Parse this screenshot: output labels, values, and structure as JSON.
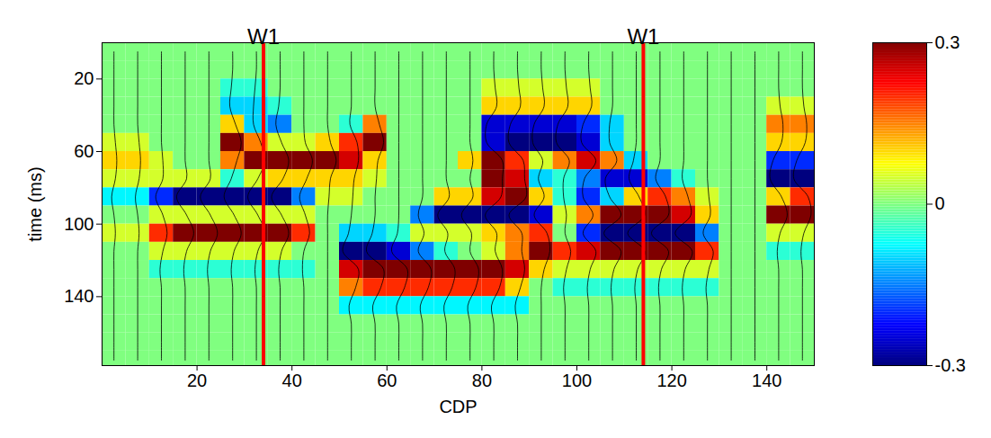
{
  "chart_data": {
    "type": "heatmap",
    "x_label": "CDP",
    "y_label": "time (ms)",
    "xlim": [
      0,
      150
    ],
    "xticks": [
      20,
      40,
      60,
      80,
      100,
      120,
      140
    ],
    "ylim": [
      0,
      178
    ],
    "yticks": [
      20,
      60,
      100,
      140
    ],
    "x_edges": [
      0,
      5,
      10,
      15,
      20,
      25,
      30,
      35,
      40,
      45,
      50,
      55,
      60,
      65,
      70,
      75,
      80,
      85,
      90,
      95,
      100,
      105,
      110,
      115,
      120,
      125,
      130,
      135,
      140,
      145,
      150
    ],
    "y_edges": [
      0,
      10,
      20,
      30,
      40,
      50,
      60,
      70,
      80,
      90,
      100,
      110,
      120,
      130,
      140,
      150,
      160,
      170,
      180
    ],
    "cells": [
      [
        0,
        0,
        0,
        0,
        0,
        0,
        0,
        0,
        0,
        0,
        0,
        0,
        0,
        0,
        0,
        0,
        0,
        0,
        0,
        0,
        0,
        0,
        0,
        0,
        0,
        0,
        0,
        0,
        0,
        0
      ],
      [
        0,
        0,
        0,
        0,
        0,
        0,
        0,
        0,
        0,
        0,
        0,
        0,
        0,
        0,
        0,
        0,
        0,
        0,
        0,
        0,
        0,
        0,
        0,
        0,
        0,
        0,
        0,
        0,
        0,
        0
      ],
      [
        0,
        0,
        0,
        0,
        0,
        -0.05,
        -0.05,
        0,
        0,
        0,
        0,
        0,
        0,
        0,
        0,
        0,
        0.05,
        0.05,
        0.05,
        0.05,
        0.05,
        0,
        0,
        0,
        0,
        0,
        0,
        0,
        0,
        0
      ],
      [
        0,
        0,
        0,
        0,
        0,
        -0.1,
        -0.1,
        -0.05,
        0,
        0,
        0,
        0,
        0,
        0,
        0,
        0,
        0.1,
        0.1,
        0.1,
        0.1,
        0.1,
        0,
        0,
        0,
        0,
        0,
        0,
        0,
        0.05,
        0.05
      ],
      [
        0,
        0,
        0,
        0,
        0,
        0.1,
        -0.1,
        -0.15,
        0,
        0,
        -0.05,
        0.15,
        0,
        0,
        0,
        0,
        -0.25,
        -0.25,
        -0.25,
        -0.25,
        -0.2,
        -0.1,
        0,
        0,
        0,
        0,
        0,
        0,
        0.15,
        0.15
      ],
      [
        0.05,
        0.05,
        0,
        0,
        0,
        0.3,
        0.15,
        0.05,
        0.05,
        0.1,
        0.2,
        0.3,
        0,
        0,
        0,
        0,
        -0.25,
        -0.3,
        -0.3,
        -0.3,
        -0.25,
        -0.1,
        0,
        0,
        0,
        0,
        0,
        0,
        0.1,
        0.1
      ],
      [
        0.1,
        0.1,
        0.05,
        0,
        0,
        0.15,
        0.3,
        0.3,
        0.3,
        0.3,
        0.25,
        0.1,
        0,
        0,
        0,
        0.1,
        0.3,
        0.2,
        0.05,
        0.15,
        0.25,
        0.15,
        -0.1,
        0,
        0,
        0,
        0,
        0,
        -0.2,
        -0.2
      ],
      [
        0.05,
        0.05,
        0.05,
        0.05,
        0.05,
        -0.05,
        0.05,
        0.1,
        0.1,
        0.1,
        0.1,
        0.05,
        0,
        0,
        0,
        0,
        0.3,
        0.25,
        -0.1,
        -0.05,
        -0.15,
        -0.25,
        -0.25,
        -0.15,
        -0.05,
        0,
        0,
        0,
        -0.3,
        -0.3
      ],
      [
        -0.08,
        -0.08,
        -0.2,
        -0.3,
        -0.3,
        -0.3,
        -0.3,
        -0.3,
        -0.15,
        0.05,
        0.05,
        0,
        0,
        0,
        0.1,
        0.1,
        0.25,
        0.3,
        0.1,
        -0.05,
        -0.2,
        -0.1,
        0.1,
        0.2,
        0.15,
        0.05,
        0,
        0,
        0.1,
        0.2
      ],
      [
        0,
        0,
        0.05,
        0.05,
        0.05,
        0.05,
        0.05,
        0.05,
        0.05,
        0,
        0,
        0,
        0,
        -0.15,
        -0.3,
        -0.3,
        -0.3,
        -0.3,
        -0.25,
        0.05,
        0.15,
        0.3,
        0.3,
        0.3,
        0.25,
        0.1,
        0,
        0,
        0.3,
        0.3
      ],
      [
        0.05,
        0.05,
        0.2,
        0.3,
        0.3,
        0.3,
        0.3,
        0.3,
        0.2,
        0,
        -0.1,
        -0.1,
        -0.05,
        0.05,
        0.05,
        0.05,
        0.1,
        0.15,
        0.2,
        0,
        -0.2,
        -0.3,
        -0.3,
        -0.3,
        -0.3,
        -0.15,
        0,
        0,
        0.05,
        0.05
      ],
      [
        0,
        0,
        0.05,
        0.05,
        0.05,
        0.05,
        0.05,
        0.05,
        0,
        0,
        -0.3,
        -0.3,
        -0.25,
        -0.15,
        -0.05,
        0,
        0.05,
        0.15,
        0.3,
        0.2,
        0.25,
        0.3,
        0.3,
        0.3,
        0.3,
        0.2,
        0,
        0,
        -0.05,
        -0.05
      ],
      [
        0,
        0,
        -0.05,
        -0.05,
        -0.05,
        -0.05,
        -0.05,
        -0.05,
        -0.05,
        0,
        0.25,
        0.3,
        0.3,
        0.3,
        0.3,
        0.3,
        0.3,
        0.25,
        0.1,
        0.05,
        0.05,
        0.05,
        0.05,
        0.05,
        0.05,
        0.05,
        0,
        0,
        0,
        0
      ],
      [
        0,
        0,
        0,
        0,
        0,
        0,
        0,
        0,
        0,
        0,
        0.15,
        0.2,
        0.2,
        0.2,
        0.2,
        0.2,
        0.2,
        0.1,
        0,
        -0.05,
        -0.05,
        -0.05,
        -0.05,
        -0.05,
        -0.05,
        -0.05,
        0,
        0,
        0,
        0
      ],
      [
        0,
        0,
        0,
        0,
        0,
        0,
        0,
        0,
        0,
        0,
        -0.08,
        -0.08,
        -0.08,
        -0.08,
        -0.08,
        -0.08,
        -0.08,
        -0.08,
        0,
        0,
        0,
        0,
        0,
        0,
        0,
        0,
        0,
        0,
        0,
        0
      ],
      [
        0,
        0,
        0,
        0,
        0,
        0,
        0,
        0,
        0,
        0,
        0,
        0,
        0,
        0,
        0,
        0,
        0,
        0,
        0,
        0,
        0,
        0,
        0,
        0,
        0,
        0,
        0,
        0,
        0,
        0
      ],
      [
        0,
        0,
        0,
        0,
        0,
        0,
        0,
        0,
        0,
        0,
        0,
        0,
        0,
        0,
        0,
        0,
        0,
        0,
        0,
        0,
        0,
        0,
        0,
        0,
        0,
        0,
        0,
        0,
        0,
        0
      ],
      [
        0,
        0,
        0,
        0,
        0,
        0,
        0,
        0,
        0,
        0,
        0,
        0,
        0,
        0,
        0,
        0,
        0,
        0,
        0,
        0,
        0,
        0,
        0,
        0,
        0,
        0,
        0,
        0,
        0,
        0
      ]
    ],
    "colorbar": {
      "range": [
        -0.3,
        0.3
      ],
      "ticks": [
        -0.3,
        0,
        0.3
      ]
    },
    "markers": [
      {
        "label": "W1",
        "x": 34,
        "color": "red"
      },
      {
        "label": "W1",
        "x": 114,
        "color": "red"
      }
    ]
  }
}
